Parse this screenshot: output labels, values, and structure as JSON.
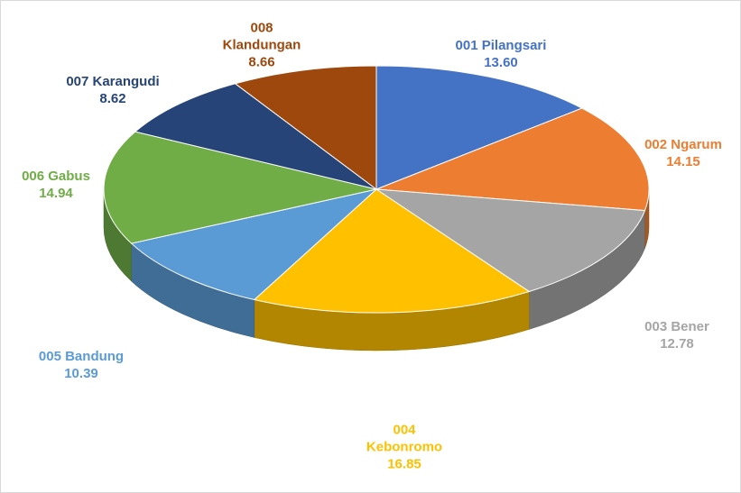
{
  "chart_data": {
    "type": "pie3d",
    "categories": [
      "001 Pilangsari",
      "002 Ngarum",
      "003 Bener",
      "004 Kebonromo",
      "005 Bandung",
      "006 Gabus",
      "007 Karangudi",
      "008 Klandungan"
    ],
    "values": [
      13.6,
      14.15,
      12.78,
      16.85,
      10.39,
      14.94,
      8.62,
      8.66
    ],
    "value_labels": [
      "13.60",
      "14.15",
      "12.78",
      "16.85",
      "10.39",
      "14.94",
      "8.62",
      "8.66"
    ],
    "colors": [
      "#4472c4",
      "#ed7d31",
      "#a5a5a5",
      "#ffc000",
      "#5b9bd5",
      "#70ad47",
      "#264478",
      "#9e480e"
    ]
  }
}
